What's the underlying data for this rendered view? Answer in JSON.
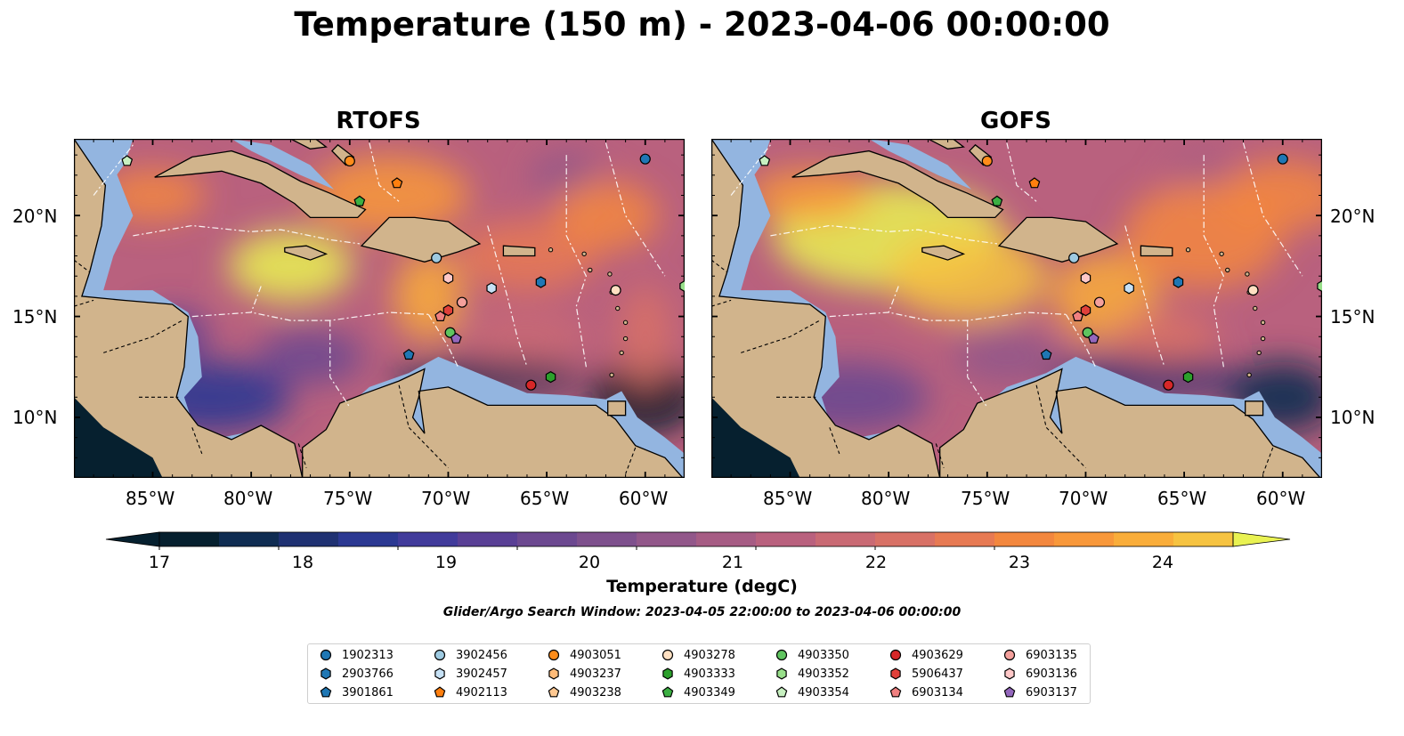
{
  "title": "Temperature (150 m) - 2023-04-06 00:00:00",
  "panels": [
    {
      "title": "RTOFS",
      "model": "rtofs"
    },
    {
      "title": "GOFS",
      "model": "gofs"
    }
  ],
  "axes": {
    "lat_ticks": [
      "10°N",
      "15°N",
      "20°N"
    ],
    "lon_ticks": [
      "85°W",
      "80°W",
      "75°W",
      "70°W",
      "65°W",
      "60°W"
    ],
    "lat_values": [
      10,
      15,
      20
    ],
    "lon_values": [
      -85,
      -80,
      -75,
      -70,
      -65,
      -60
    ],
    "extent": {
      "lon_min": -89,
      "lon_max": -58,
      "lat_min": 7,
      "lat_max": 23.8
    }
  },
  "colorbar": {
    "label": "Temperature (degC)",
    "ticks": [
      "17",
      "18",
      "19",
      "20",
      "21",
      "22",
      "23",
      "24"
    ],
    "min": 17,
    "max": 24.5,
    "step": 0.5,
    "colors": [
      "#06202f",
      "#0f2c52",
      "#1f3172",
      "#2b3892",
      "#413b9b",
      "#593f95",
      "#6c4890",
      "#7e508d",
      "#92578a",
      "#a65c84",
      "#b9617e",
      "#c96a74",
      "#d87166",
      "#e77a53",
      "#f3873e",
      "#f8983a",
      "#f9ad3a",
      "#f6c341",
      "#e9f252"
    ],
    "land_color": "#d1b48c",
    "shelf_color": "#93b5e0"
  },
  "search_window": "Glider/Argo Search Window: 2023-04-05 22:00:00 to 2023-04-06 00:00:00",
  "legend": [
    {
      "id": "1902313",
      "marker": "circle",
      "color": "#1f77b4"
    },
    {
      "id": "2903766",
      "marker": "hexagon",
      "color": "#1f77b4"
    },
    {
      "id": "3901861",
      "marker": "pentagon",
      "color": "#1f77b4"
    },
    {
      "id": "3902456",
      "marker": "circle",
      "color": "#9ecae1"
    },
    {
      "id": "3902457",
      "marker": "hexagon",
      "color": "#c6e1f5"
    },
    {
      "id": "4902113",
      "marker": "pentagon",
      "color": "#ff7f0e"
    },
    {
      "id": "4903051",
      "marker": "circle",
      "color": "#ff8c1a"
    },
    {
      "id": "4903237",
      "marker": "hexagon",
      "color": "#ffbb78"
    },
    {
      "id": "4903238",
      "marker": "pentagon",
      "color": "#ffc891"
    },
    {
      "id": "4903278",
      "marker": "circle",
      "color": "#ffe0c2"
    },
    {
      "id": "4903333",
      "marker": "hexagon",
      "color": "#2ca02c"
    },
    {
      "id": "4903349",
      "marker": "pentagon",
      "color": "#3cb043"
    },
    {
      "id": "4903350",
      "marker": "circle",
      "color": "#5fc45f"
    },
    {
      "id": "4903352",
      "marker": "hexagon",
      "color": "#98df8a"
    },
    {
      "id": "4903354",
      "marker": "pentagon",
      "color": "#c7f0c0"
    },
    {
      "id": "4903629",
      "marker": "circle",
      "color": "#d62728"
    },
    {
      "id": "5906437",
      "marker": "hexagon",
      "color": "#e0403a"
    },
    {
      "id": "6903134",
      "marker": "pentagon",
      "color": "#f08080"
    },
    {
      "id": "6903135",
      "marker": "circle",
      "color": "#f4a09c"
    },
    {
      "id": "6903136",
      "marker": "hexagon",
      "color": "#ffc8c8"
    },
    {
      "id": "6903137",
      "marker": "pentagon",
      "color": "#9467bd"
    }
  ],
  "floats": [
    {
      "id": "1902313",
      "lon": -60.0,
      "lat": 22.8
    },
    {
      "id": "3902456",
      "lon": -70.6,
      "lat": 17.9
    },
    {
      "id": "4903354",
      "lon": -86.3,
      "lat": 22.7
    },
    {
      "id": "4903051",
      "lon": -75.0,
      "lat": 22.7
    },
    {
      "id": "4902113",
      "lon": -72.6,
      "lat": 21.6
    },
    {
      "id": "4903349",
      "lon": -74.5,
      "lat": 20.7
    },
    {
      "id": "6903136",
      "lon": -70.0,
      "lat": 16.9
    },
    {
      "id": "3902457",
      "lon": -67.8,
      "lat": 16.4
    },
    {
      "id": "2903766",
      "lon": -65.3,
      "lat": 16.7
    },
    {
      "id": "6903135",
      "lon": -69.3,
      "lat": 15.7
    },
    {
      "id": "5906437",
      "lon": -70.0,
      "lat": 15.3
    },
    {
      "id": "6903134",
      "lon": -70.4,
      "lat": 15.0
    },
    {
      "id": "4903350",
      "lon": -69.9,
      "lat": 14.2
    },
    {
      "id": "6903137",
      "lon": -69.6,
      "lat": 13.9
    },
    {
      "id": "3901861",
      "lon": -72.0,
      "lat": 13.1
    },
    {
      "id": "4903629",
      "lon": -65.8,
      "lat": 11.6
    },
    {
      "id": "4903333",
      "lon": -64.8,
      "lat": 12.0
    },
    {
      "id": "4903352",
      "lon": -58.0,
      "lat": 16.5
    },
    {
      "id": "4903278",
      "lon": -61.5,
      "lat": 16.3
    }
  ]
}
